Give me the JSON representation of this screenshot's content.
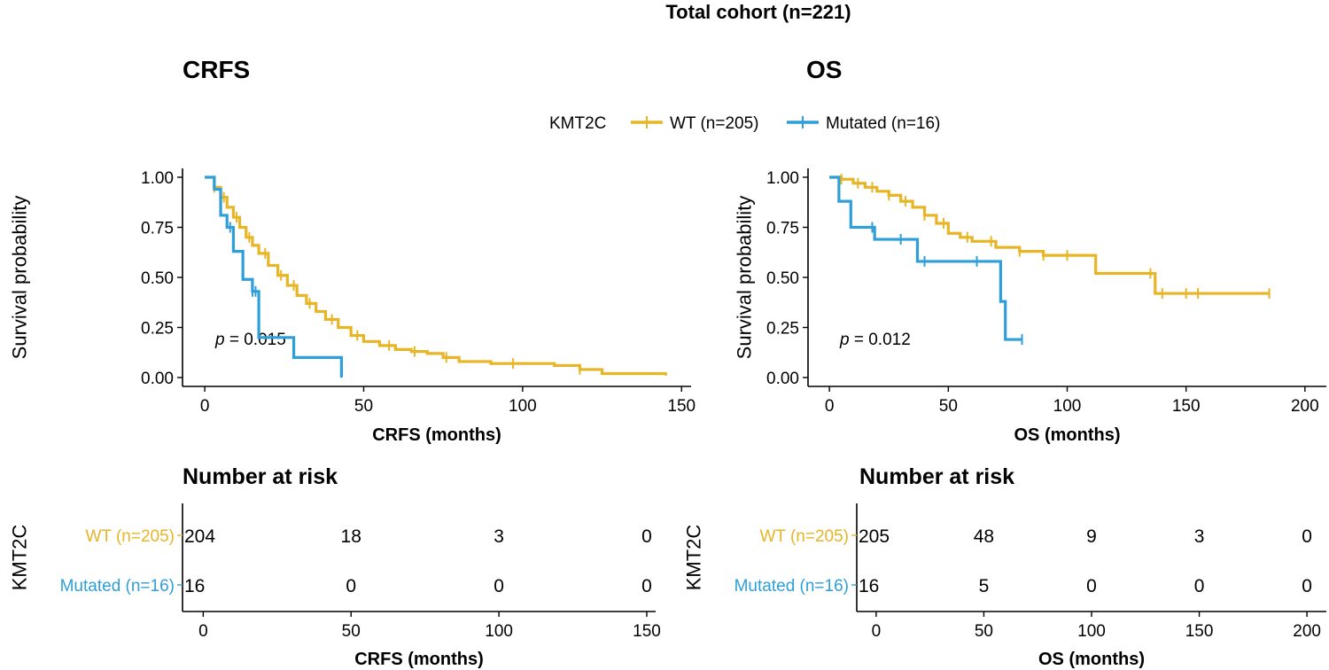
{
  "figure_title": "Total cohort (n=221)",
  "legend": {
    "title": "KMT2C",
    "items": [
      {
        "label": "WT (n=205)",
        "color": "#E7B526"
      },
      {
        "label": "Mutated (n=16)",
        "color": "#2E9FD8"
      }
    ]
  },
  "colors": {
    "wt": "#E7B526",
    "mut": "#2E9FD8",
    "axis": "#000000"
  },
  "chart_data": [
    {
      "type": "line",
      "panel": "CRFS",
      "title": "CRFS",
      "xlabel": "CRFS (months)",
      "ylabel": "Survival probability",
      "xlim": [
        -7,
        153
      ],
      "ylim": [
        0,
        1
      ],
      "xticks": [
        0,
        50,
        100,
        150
      ],
      "yticks": [
        0,
        0.25,
        0.5,
        0.75,
        1
      ],
      "ytick_labels": [
        "0.00",
        "0.25",
        "0.50",
        "0.75",
        "1.00"
      ],
      "pvalue": "p = 0.015",
      "series": [
        {
          "name": "WT (n=205)",
          "color_key": "wt",
          "x": [
            0,
            3,
            5,
            7,
            9,
            11,
            13,
            15,
            17,
            20,
            23,
            26,
            29,
            32,
            35,
            38,
            42,
            46,
            50,
            55,
            60,
            65,
            70,
            75,
            80,
            90,
            100,
            110,
            118,
            125,
            135,
            145
          ],
          "y": [
            1,
            0.95,
            0.9,
            0.85,
            0.8,
            0.75,
            0.7,
            0.66,
            0.62,
            0.56,
            0.51,
            0.46,
            0.41,
            0.37,
            0.33,
            0.29,
            0.25,
            0.21,
            0.18,
            0.16,
            0.14,
            0.13,
            0.12,
            0.1,
            0.08,
            0.07,
            0.07,
            0.06,
            0.04,
            0.02,
            0.02,
            0.01
          ],
          "censor_x": [
            3,
            6,
            10,
            14,
            19,
            24,
            28,
            33,
            40,
            48,
            58,
            66,
            76,
            97,
            118
          ]
        },
        {
          "name": "Mutated (n=16)",
          "color_key": "mut",
          "x": [
            0,
            3,
            5,
            7,
            9,
            12,
            15,
            17,
            28,
            43
          ],
          "y": [
            1,
            0.94,
            0.81,
            0.75,
            0.63,
            0.49,
            0.43,
            0.2,
            0.1,
            0
          ],
          "censor_x": [
            8,
            15,
            16
          ]
        }
      ],
      "risk_table": {
        "title": "Number at risk",
        "ylabel": "KMT2C",
        "xlabel": "CRFS (months)",
        "times": [
          0,
          50,
          100,
          150
        ],
        "xlim": [
          -7,
          153
        ],
        "rows": [
          {
            "label": "WT (n=205)",
            "color_key": "wt",
            "values": [
              "204",
              "18",
              "3",
              "0"
            ]
          },
          {
            "label": "Mutated (n=16)",
            "color_key": "mut",
            "values": [
              "16",
              "0",
              "0",
              "0"
            ]
          }
        ]
      }
    },
    {
      "type": "line",
      "panel": "OS",
      "title": "OS",
      "xlabel": "OS (months)",
      "ylabel": "Survival probability",
      "xlim": [
        -9,
        209
      ],
      "ylim": [
        0,
        1
      ],
      "xticks": [
        0,
        50,
        100,
        150,
        200
      ],
      "yticks": [
        0,
        0.25,
        0.5,
        0.75,
        1
      ],
      "ytick_labels": [
        "0.00",
        "0.25",
        "0.50",
        "0.75",
        "1.00"
      ],
      "pvalue": "p = 0.012",
      "series": [
        {
          "name": "WT (n=205)",
          "color_key": "wt",
          "x": [
            0,
            5,
            10,
            15,
            20,
            25,
            30,
            35,
            40,
            45,
            50,
            55,
            60,
            70,
            80,
            90,
            112,
            137,
            185
          ],
          "y": [
            1,
            0.99,
            0.97,
            0.95,
            0.93,
            0.91,
            0.88,
            0.85,
            0.81,
            0.77,
            0.72,
            0.7,
            0.68,
            0.65,
            0.63,
            0.61,
            0.52,
            0.42,
            0.42
          ],
          "censor_x": [
            5,
            12,
            18,
            25,
            32,
            40,
            48,
            58,
            68,
            80,
            90,
            100,
            135,
            140,
            150,
            155,
            185
          ]
        },
        {
          "name": "Mutated (n=16)",
          "color_key": "mut",
          "x": [
            0,
            4,
            9,
            19,
            37,
            72,
            74,
            81
          ],
          "y": [
            1,
            0.88,
            0.75,
            0.69,
            0.58,
            0.38,
            0.19,
            0.19
          ],
          "censor_x": [
            18,
            30,
            40,
            62,
            81
          ]
        }
      ],
      "risk_table": {
        "title": "Number at risk",
        "ylabel": "KMT2C",
        "xlabel": "OS (months)",
        "times": [
          0,
          50,
          100,
          150,
          200
        ],
        "xlim": [
          -9,
          209
        ],
        "rows": [
          {
            "label": "WT (n=205)",
            "color_key": "wt",
            "values": [
              "205",
              "48",
              "9",
              "3",
              "0"
            ]
          },
          {
            "label": "Mutated (n=16)",
            "color_key": "mut",
            "values": [
              "16",
              "5",
              "0",
              "0",
              "0"
            ]
          }
        ]
      }
    }
  ]
}
